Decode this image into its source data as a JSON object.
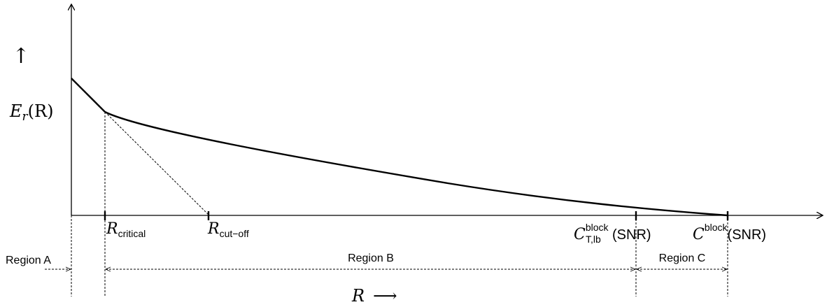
{
  "y_axis": {
    "arrow": "↑",
    "label_main": "E",
    "label_sub": "r",
    "label_paren": "(R)"
  },
  "x_axis": {
    "label": "R",
    "arrow": "⟶"
  },
  "ticks": {
    "critical": {
      "main": "R",
      "sub": "critical"
    },
    "cutoff": {
      "main": "R",
      "sub": "cut−off"
    },
    "ctlb": {
      "main": "C",
      "sup": "block",
      "sub": "T,lb",
      "arg": "(SNR)"
    },
    "cblock": {
      "main": "C",
      "sup": "block",
      "arg": "(SNR)"
    }
  },
  "regions": {
    "a": "Region A",
    "b": "Region B",
    "c": "Region C"
  }
}
